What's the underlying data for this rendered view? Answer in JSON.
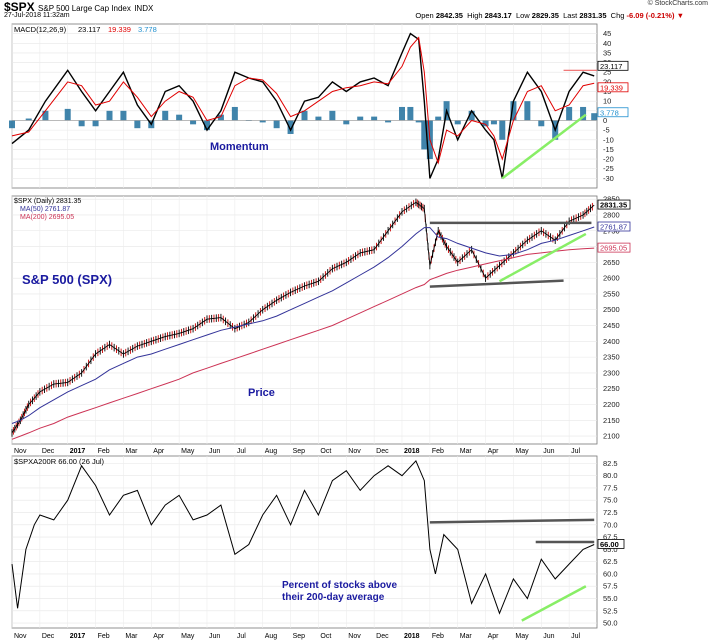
{
  "header": {
    "symbol": "$SPX",
    "name": "S&P 500 Large Cap Index",
    "exchange": "INDX",
    "timestamp": "27-Jul-2018 11:32am",
    "open_label": "Open",
    "open": "2842.35",
    "high_label": "High",
    "high": "2843.17",
    "low_label": "Low",
    "low": "2829.35",
    "last_label": "Last",
    "last": "2831.35",
    "chg_label": "Chg",
    "chg": "-6.09 (-0.21%)",
    "credit": "© StockCharts.com"
  },
  "x_axis": {
    "months": [
      "Nov",
      "Dec",
      "2017",
      "Feb",
      "Mar",
      "Apr",
      "May",
      "Jun",
      "Jul",
      "Aug",
      "Sep",
      "Oct",
      "Nov",
      "Dec",
      "2018",
      "Feb",
      "Mar",
      "Apr",
      "May",
      "Jun",
      "Jul"
    ]
  },
  "chart_data": [
    {
      "type": "line",
      "panel": "macd",
      "legend": "MACD(12,26,9) 23.117, 19.339, 3.778",
      "legend_parts": {
        "label": "MACD(12,26,9)",
        "macd": "23.117",
        "signal": "19.339",
        "hist": "3.778"
      },
      "annotation": "Momentum",
      "ylim": [
        -35,
        50
      ],
      "yticks": [
        "45",
        "40",
        "35",
        "30",
        "25",
        "20",
        "15",
        "10",
        "5",
        "0",
        "-5",
        "-10",
        "-15",
        "-20",
        "-25",
        "-30"
      ],
      "x_months": [
        0,
        0.6,
        1.2,
        2.0,
        2.5,
        3.0,
        3.5,
        4.0,
        4.5,
        5.0,
        5.5,
        6.0,
        6.5,
        7.0,
        7.5,
        8.0,
        8.5,
        9.0,
        9.5,
        10.0,
        10.5,
        11.0,
        11.5,
        12.0,
        12.5,
        13.0,
        13.5,
        14.0,
        14.3,
        14.6,
        14.8,
        15.0,
        15.3,
        15.6,
        16.0,
        16.5,
        17.0,
        17.3,
        17.6,
        18.0,
        18.5,
        19.0,
        19.5,
        20.0,
        20.5,
        20.9
      ],
      "series": [
        {
          "name": "MACD",
          "color": "#000000",
          "values": [
            -12,
            -5,
            10,
            26,
            15,
            5,
            15,
            25,
            8,
            -2,
            15,
            18,
            10,
            -5,
            5,
            25,
            22,
            20,
            10,
            -5,
            10,
            12,
            20,
            15,
            20,
            22,
            18,
            35,
            45,
            42,
            10,
            -30,
            -20,
            5,
            -10,
            5,
            -5,
            -10,
            -30,
            10,
            25,
            15,
            -5,
            15,
            25,
            23.117
          ]
        },
        {
          "name": "Signal",
          "color": "#e00000",
          "values": [
            -8,
            -6,
            5,
            20,
            18,
            8,
            10,
            20,
            12,
            2,
            10,
            15,
            12,
            0,
            2,
            18,
            22,
            21,
            14,
            2,
            5,
            10,
            15,
            17,
            18,
            20,
            19,
            28,
            38,
            43,
            25,
            -10,
            -22,
            -5,
            -8,
            0,
            -2,
            -8,
            -20,
            0,
            15,
            18,
            5,
            8,
            18,
            19.339
          ]
        }
      ],
      "histogram_color": "#1f6e9c",
      "annotations": {
        "support_line": {
          "color": "#88ee66",
          "from": [
            17.6,
            -30
          ],
          "to": [
            20.6,
            3
          ]
        },
        "resistance_line": {
          "color": "#ee6666",
          "level": 26
        }
      }
    },
    {
      "type": "line",
      "panel": "price",
      "legend": "$SPX (Daily) 2831.35",
      "legend_parts": {
        "price": "$SPX (Daily) 2831.35",
        "ma50": "MA(50) 2761.87",
        "ma200": "MA(200) 2695.05"
      },
      "title_annotation": "S&P 500 (SPX)",
      "annotation": "Price",
      "ylim": [
        2075,
        2860
      ],
      "yticks": [
        "2850",
        "2800",
        "2750",
        "2700",
        "2650",
        "2600",
        "2550",
        "2500",
        "2450",
        "2400",
        "2350",
        "2300",
        "2250",
        "2200",
        "2150",
        "2100"
      ],
      "last_labels": [
        "2831.35",
        "2761.87",
        "2695.05"
      ],
      "x_months": [
        0,
        0.3,
        0.6,
        1.0,
        1.5,
        2.0,
        2.5,
        3.0,
        3.5,
        4.0,
        4.5,
        5.0,
        5.5,
        6.0,
        6.5,
        7.0,
        7.5,
        8.0,
        8.5,
        9.0,
        9.5,
        10.0,
        10.5,
        11.0,
        11.5,
        12.0,
        12.5,
        13.0,
        13.5,
        14.0,
        14.5,
        14.8,
        15.0,
        15.3,
        15.6,
        16.0,
        16.5,
        17.0,
        17.5,
        18.0,
        18.5,
        19.0,
        19.5,
        20.0,
        20.5,
        20.9
      ],
      "series": [
        {
          "name": "SPX",
          "color": "#000000",
          "values": [
            2110,
            2150,
            2200,
            2240,
            2265,
            2270,
            2300,
            2360,
            2390,
            2360,
            2385,
            2400,
            2415,
            2425,
            2440,
            2470,
            2475,
            2440,
            2460,
            2500,
            2530,
            2555,
            2575,
            2590,
            2630,
            2650,
            2680,
            2690,
            2750,
            2810,
            2840,
            2820,
            2640,
            2750,
            2700,
            2650,
            2690,
            2600,
            2640,
            2680,
            2720,
            2750,
            2720,
            2780,
            2800,
            2831.35
          ]
        },
        {
          "name": "MA(50)",
          "color": "#333399",
          "values": [
            2140,
            2150,
            2165,
            2190,
            2215,
            2240,
            2260,
            2280,
            2310,
            2330,
            2350,
            2360,
            2375,
            2390,
            2405,
            2420,
            2435,
            2445,
            2455,
            2465,
            2480,
            2500,
            2520,
            2540,
            2560,
            2585,
            2610,
            2635,
            2665,
            2700,
            2740,
            2760,
            2760,
            2730,
            2725,
            2710,
            2695,
            2680,
            2670,
            2675,
            2690,
            2710,
            2720,
            2735,
            2750,
            2761.87
          ]
        },
        {
          "name": "MA(200)",
          "color": "#cc3355",
          "values": [
            2090,
            2100,
            2110,
            2125,
            2140,
            2160,
            2175,
            2190,
            2205,
            2220,
            2235,
            2250,
            2265,
            2280,
            2300,
            2315,
            2330,
            2345,
            2360,
            2375,
            2390,
            2405,
            2420,
            2435,
            2450,
            2470,
            2490,
            2510,
            2530,
            2550,
            2570,
            2580,
            2595,
            2605,
            2615,
            2625,
            2635,
            2645,
            2655,
            2665,
            2675,
            2680,
            2685,
            2690,
            2693,
            2695.05
          ]
        }
      ],
      "annotations": {
        "range_top": {
          "color": "#555555",
          "from": [
            15.0,
            2775
          ],
          "to": [
            20.8,
            2775
          ]
        },
        "range_bottom": {
          "color": "#555555",
          "from": [
            15.0,
            2573
          ],
          "to": [
            19.8,
            2592
          ]
        },
        "support_green": {
          "color": "#88ee66",
          "from": [
            17.5,
            2590
          ],
          "to": [
            20.6,
            2740
          ]
        }
      }
    },
    {
      "type": "line",
      "panel": "breadth",
      "legend": "$SPXA200R 66.00 (26 Jul)",
      "annotation": [
        "Percent of stocks above",
        "their 200-day average"
      ],
      "ylim": [
        49,
        84
      ],
      "yticks": [
        "82.5",
        "80.0",
        "77.5",
        "75.0",
        "72.5",
        "70.0",
        "67.5",
        "65.0",
        "62.5",
        "60.0",
        "57.5",
        "55.0",
        "52.5",
        "50.0"
      ],
      "last_label": "66.00",
      "x_months": [
        0,
        0.2,
        0.5,
        0.8,
        1.0,
        1.5,
        2.0,
        2.5,
        3.0,
        3.5,
        4.0,
        4.5,
        5.0,
        5.5,
        6.0,
        6.5,
        7.0,
        7.5,
        8.0,
        8.5,
        9.0,
        9.5,
        10.0,
        10.5,
        11.0,
        11.5,
        12.0,
        12.5,
        13.0,
        13.5,
        14.0,
        14.5,
        14.8,
        15.0,
        15.2,
        15.5,
        16.0,
        16.5,
        17.0,
        17.5,
        18.0,
        18.5,
        19.0,
        19.5,
        20.0,
        20.5,
        20.9
      ],
      "series": [
        {
          "name": "$SPXA200R",
          "color": "#000000",
          "values": [
            62,
            53,
            65,
            70,
            72,
            71,
            75,
            82,
            78,
            72,
            76,
            77,
            70,
            74,
            76,
            71,
            72,
            74,
            64,
            66,
            72,
            76,
            70,
            77,
            72,
            79,
            81,
            77,
            80,
            82,
            80,
            83,
            79,
            65,
            60,
            68,
            65,
            54,
            60,
            52,
            59,
            55,
            63,
            59,
            62,
            65,
            66
          ]
        }
      ],
      "annotations": {
        "top_line": {
          "color": "#555555",
          "from": [
            15.0,
            70.5
          ],
          "to": [
            20.9,
            71.0
          ]
        },
        "recent_top": {
          "color": "#555555",
          "from": [
            18.8,
            66.5
          ],
          "to": [
            20.9,
            66.5
          ]
        },
        "support_green": {
          "color": "#88ee66",
          "from": [
            18.3,
            50.5
          ],
          "to": [
            20.6,
            57.5
          ]
        }
      }
    }
  ]
}
